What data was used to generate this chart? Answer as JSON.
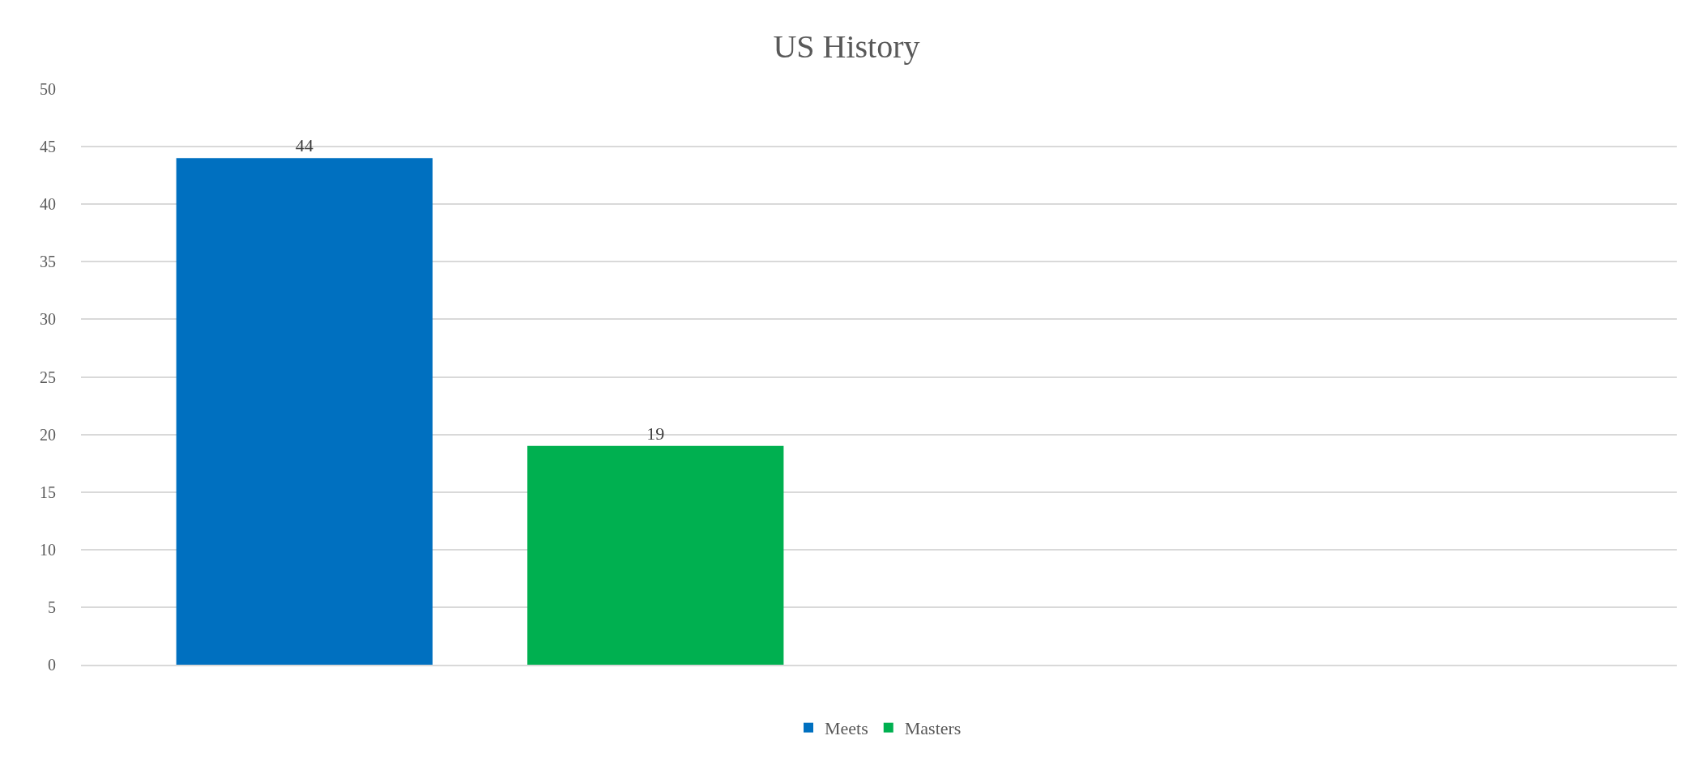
{
  "chart_data": {
    "type": "bar",
    "title": "US History",
    "categories": [
      null,
      null
    ],
    "series": [
      {
        "name": "Meets",
        "color": "#0070c0",
        "values": [
          44,
          null
        ]
      },
      {
        "name": "Masters",
        "color": "#00b050",
        "values": [
          19,
          null
        ]
      }
    ],
    "ylim": [
      0,
      50
    ],
    "yticks": [
      0,
      5,
      10,
      15,
      20,
      25,
      30,
      35,
      40,
      45,
      50
    ],
    "grid": "y",
    "legend": "bottom",
    "data_labels": true,
    "tick_labels": "y"
  }
}
